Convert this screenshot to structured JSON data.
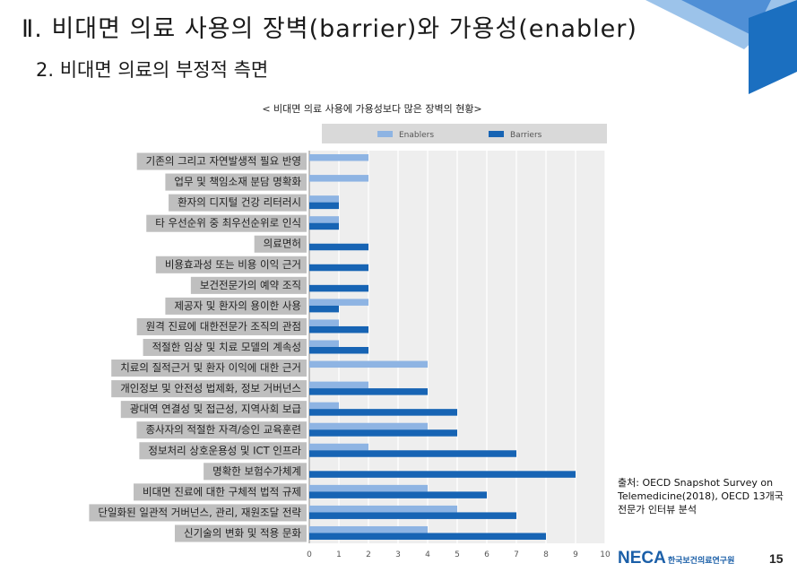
{
  "slide": {
    "title": "Ⅱ. 비대면 의료 사용의 장벽(barrier)와 가용성(enabler)",
    "subtitle": "2. 비대면 의료의 부정적 측면",
    "source": "출처: OECD Snapshot Survey on Telemedicine(2018), OECD 13개국 전문가 인터뷰 분석",
    "logo": "NECA",
    "logo_text": "한국보건의료연구원",
    "page_number": "15"
  },
  "colors": {
    "enablers": "#8eb4e3",
    "barriers": "#1764b4",
    "label_bg": "#bfbfbf",
    "plot_bg": "#eeeeee",
    "deco_dark": "#1b6fc0",
    "deco_light": "#9cc3ea"
  },
  "chart_data": {
    "type": "bar",
    "orientation": "horizontal",
    "title": "< 비대면 의료 사용에 가용성보다 많은 장벽의 현황>",
    "categories": [
      "기존의 그리고 자연발생적 필요 반영",
      "업무 및 책임소재 분담 명확화",
      "환자의 디지털 건강 리터러시",
      "타 우선순위 중 최우선순위로 인식",
      "의료면허",
      "비용효과성 또는 비용 이익 근거",
      "보건전문가의 예약 조직",
      "제공자 및 환자의 용이한 사용",
      "원격 진료에 대한전문가 조직의 관점",
      "적절한 임상 및 치료 모델의 계속성",
      "치료의 질적근거 및 환자 이익에 대한 근거",
      "개인정보 및 안전성 법제화, 정보 거버넌스",
      "광대역 연결성 및 접근성, 지역사회 보급",
      "종사자의 적절한 자격/승인 교육훈련",
      "정보처리 상호운용성 및 ICT 인프라",
      "명확한 보험수가체계",
      "비대면 진료에 대한 구체적 법적 규제",
      "단일화된 일관적 거버넌스, 관리, 재원조달 전략",
      "신기술의 변화 및 적용 문화"
    ],
    "series": [
      {
        "name": "Enablers",
        "values": [
          2,
          2,
          1,
          1,
          0,
          0,
          0,
          2,
          1,
          1,
          4,
          2,
          1,
          4,
          2,
          0,
          4,
          5,
          4
        ]
      },
      {
        "name": "Barriers",
        "values": [
          0,
          0,
          1,
          1,
          2,
          2,
          2,
          1,
          2,
          2,
          0,
          4,
          5,
          5,
          7,
          9,
          6,
          7,
          8
        ]
      }
    ],
    "x_ticks": [
      0,
      1,
      2,
      3,
      4,
      5,
      6,
      7,
      8,
      9,
      10
    ],
    "xlim": [
      0,
      10
    ],
    "grid": true,
    "legend_position": "top"
  }
}
